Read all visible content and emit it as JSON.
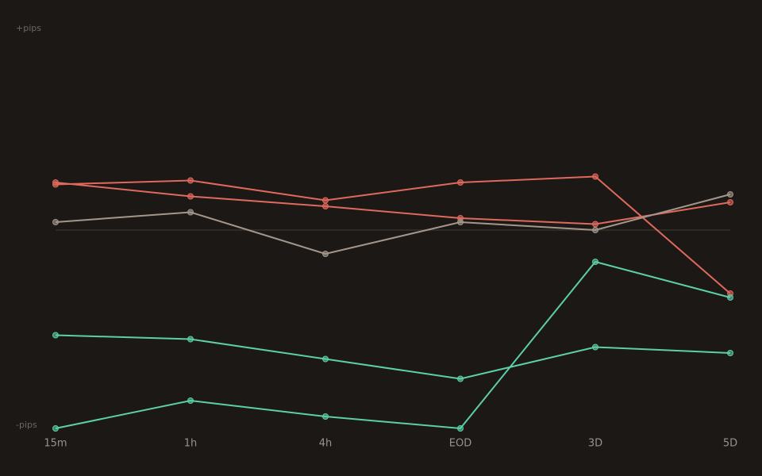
{
  "chart_data": {
    "type": "line",
    "y_top_label": "+pips",
    "y_bottom_label": "-pips",
    "categories": [
      "15m",
      "1h",
      "4h",
      "EOD",
      "3D",
      "5D"
    ],
    "ylim": [
      -100,
      100
    ],
    "baseline": 0,
    "series": [
      {
        "color": "#e0695d",
        "values": [
          23,
          25,
          15,
          24,
          27,
          -32
        ]
      },
      {
        "color": "#e0695d",
        "values": [
          24,
          17,
          12,
          6,
          3,
          14
        ]
      },
      {
        "color": "#a3978c",
        "values": [
          4,
          9,
          -12,
          4,
          0,
          18
        ]
      },
      {
        "color": "#5ccfa8",
        "values": [
          -53,
          -55,
          -65,
          -75,
          -59,
          -62
        ]
      },
      {
        "color": "#5ccfa8",
        "values": [
          -100,
          -86,
          -94,
          -100,
          -16,
          -34
        ]
      }
    ]
  }
}
